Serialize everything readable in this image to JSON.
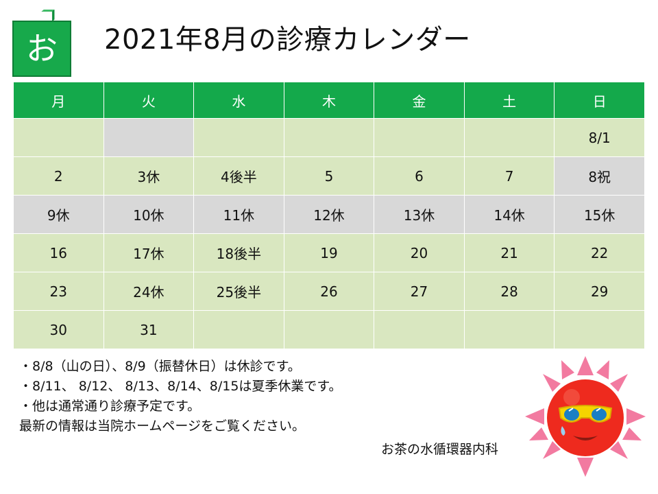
{
  "logo": {
    "char": "お"
  },
  "title": "2021年8月の診療カレンダー",
  "calendar": {
    "headers": [
      "月",
      "火",
      "水",
      "木",
      "金",
      "土",
      "日"
    ],
    "rows": [
      [
        "",
        "",
        "",
        "",
        "",
        "",
        "8/1"
      ],
      [
        "2",
        "3休",
        "4後半",
        "5",
        "6",
        "7",
        "8祝"
      ],
      [
        "9休",
        "10休",
        "11休",
        "12休",
        "13休",
        "14休",
        "15休"
      ],
      [
        "16",
        "17休",
        "18後半",
        "19",
        "20",
        "21",
        "22"
      ],
      [
        "23",
        "24休",
        "25後半",
        "26",
        "27",
        "28",
        "29"
      ],
      [
        "30",
        "31",
        "",
        "",
        "",
        "",
        ""
      ]
    ]
  },
  "notes": [
    "・8/8（山の日）、8/9（振替休日）は休診です。",
    "・8/11、 8/12、 8/13、8/14、8/15は夏季休業です。",
    "・他は通常通り診療予定です。",
    "最新の情報は当院ホームページをご覧ください。"
  ],
  "clinic_name": "お茶の水循環器内科",
  "colors": {
    "header_green": "#14a94b",
    "cell_green": "#d9e7c0",
    "cell_gray": "#d8d8d8"
  }
}
